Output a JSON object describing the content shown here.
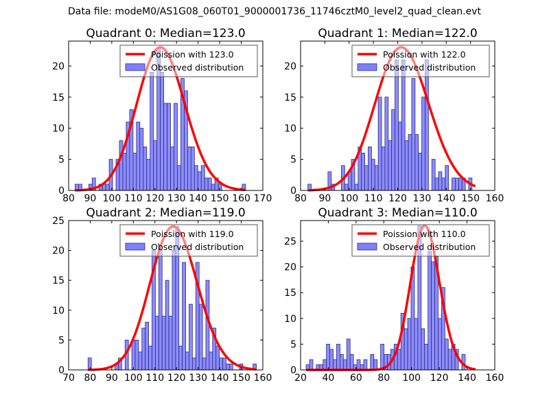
{
  "suptitle": "Data file: modeM0/AS1G08_060T01_9000001736_11746cztM0_level2_quad_clean.evt",
  "colors": {
    "bar_fill": "#7f7fff",
    "bar_edge": "#2b2b7a",
    "curve": "#ff0000"
  },
  "chart_data": [
    {
      "type": "bar",
      "title": "Quadrant 0: Median=123.0",
      "xlim": [
        80,
        170
      ],
      "ylim": [
        0,
        24
      ],
      "xticks": [
        80,
        90,
        100,
        110,
        120,
        130,
        140,
        150,
        160,
        170
      ],
      "yticks": [
        0,
        5,
        10,
        15,
        20
      ],
      "legend": [
        "Poission with 123.0",
        "Observed distribution"
      ],
      "legend_loc": "upper-right",
      "bin_start": 83,
      "bin_width": 1.58,
      "values": [
        1,
        1,
        0,
        0,
        1,
        2,
        0,
        1,
        1,
        1,
        5,
        0,
        5,
        8,
        6,
        11,
        13,
        6,
        11,
        10,
        7,
        5,
        19,
        8,
        23,
        19,
        14,
        14,
        7,
        14,
        4,
        18,
        16,
        7,
        7,
        4,
        3,
        4,
        2,
        2,
        1,
        2,
        1,
        0,
        0,
        0,
        0,
        0,
        0,
        1
      ],
      "poisson_mean": 123.0,
      "poisson_scale": 23
    },
    {
      "type": "bar",
      "title": "Quadrant 1: Median=122.0",
      "xlim": [
        80,
        160
      ],
      "ylim": [
        0,
        24
      ],
      "xticks": [
        80,
        90,
        100,
        110,
        120,
        130,
        140,
        150,
        160
      ],
      "yticks": [
        0,
        5,
        10,
        15,
        20
      ],
      "legend": [
        "Poission with 122.0",
        "Observed distribution"
      ],
      "legend_loc": "upper-right",
      "bin_start": 83,
      "bin_width": 1.38,
      "values": [
        1,
        0,
        0,
        0,
        0,
        0,
        3,
        1,
        0,
        0,
        4,
        1,
        3,
        5,
        1,
        7,
        6,
        4,
        7,
        5,
        4,
        15,
        7,
        15,
        8,
        13,
        21,
        11,
        21,
        8,
        9,
        18,
        9,
        6,
        15,
        21,
        0,
        5,
        2,
        3,
        2,
        4,
        0,
        2,
        2,
        2,
        2,
        0,
        2,
        0
      ],
      "poisson_mean": 122.0,
      "poisson_scale": 23
    },
    {
      "type": "bar",
      "title": "Quadrant 2: Median=119.0",
      "xlim": [
        70,
        160
      ],
      "ylim": [
        0,
        25
      ],
      "xticks": [
        70,
        80,
        90,
        100,
        110,
        120,
        130,
        140,
        150,
        160
      ],
      "yticks": [
        0,
        5,
        10,
        15,
        20,
        25
      ],
      "legend": [
        "Poission with 119.0",
        "Observed distribution"
      ],
      "legend_loc": "upper-right",
      "bin_start": 79,
      "bin_width": 1.56,
      "values": [
        2,
        0,
        0,
        0,
        0,
        0,
        0,
        0,
        1,
        2,
        0,
        5,
        0,
        5,
        5,
        3,
        7,
        8,
        4,
        20,
        9,
        20,
        9,
        15,
        9,
        20,
        24,
        4,
        18,
        3,
        11,
        2,
        18,
        11,
        2,
        15,
        3,
        7,
        4,
        2,
        2,
        1,
        1,
        0,
        0,
        1,
        0,
        0,
        0,
        1
      ],
      "poisson_mean": 119.0,
      "poisson_scale": 24
    },
    {
      "type": "bar",
      "title": "Quadrant 3: Median=110.0",
      "xlim": [
        20,
        160
      ],
      "ylim": [
        0,
        29
      ],
      "xticks": [
        20,
        40,
        60,
        80,
        100,
        120,
        140,
        160
      ],
      "yticks": [
        0,
        5,
        10,
        15,
        20,
        25
      ],
      "legend": [
        "Poission with 110.0",
        "Observed distribution"
      ],
      "legend_loc": "upper-right",
      "bin_start": 24,
      "bin_width": 2.44,
      "values": [
        1,
        2,
        0,
        1,
        1,
        2,
        5,
        4,
        2,
        5,
        3,
        2,
        6,
        3,
        1,
        2,
        1,
        2,
        0,
        3,
        2,
        0,
        5,
        3,
        3,
        4,
        5,
        4,
        11,
        8,
        10,
        20,
        10,
        28,
        8,
        5,
        23,
        21,
        22,
        10,
        16,
        6,
        4,
        5,
        4,
        0,
        3,
        0,
        0,
        0
      ],
      "poisson_mean": 110.0,
      "poisson_scale": 28
    }
  ]
}
